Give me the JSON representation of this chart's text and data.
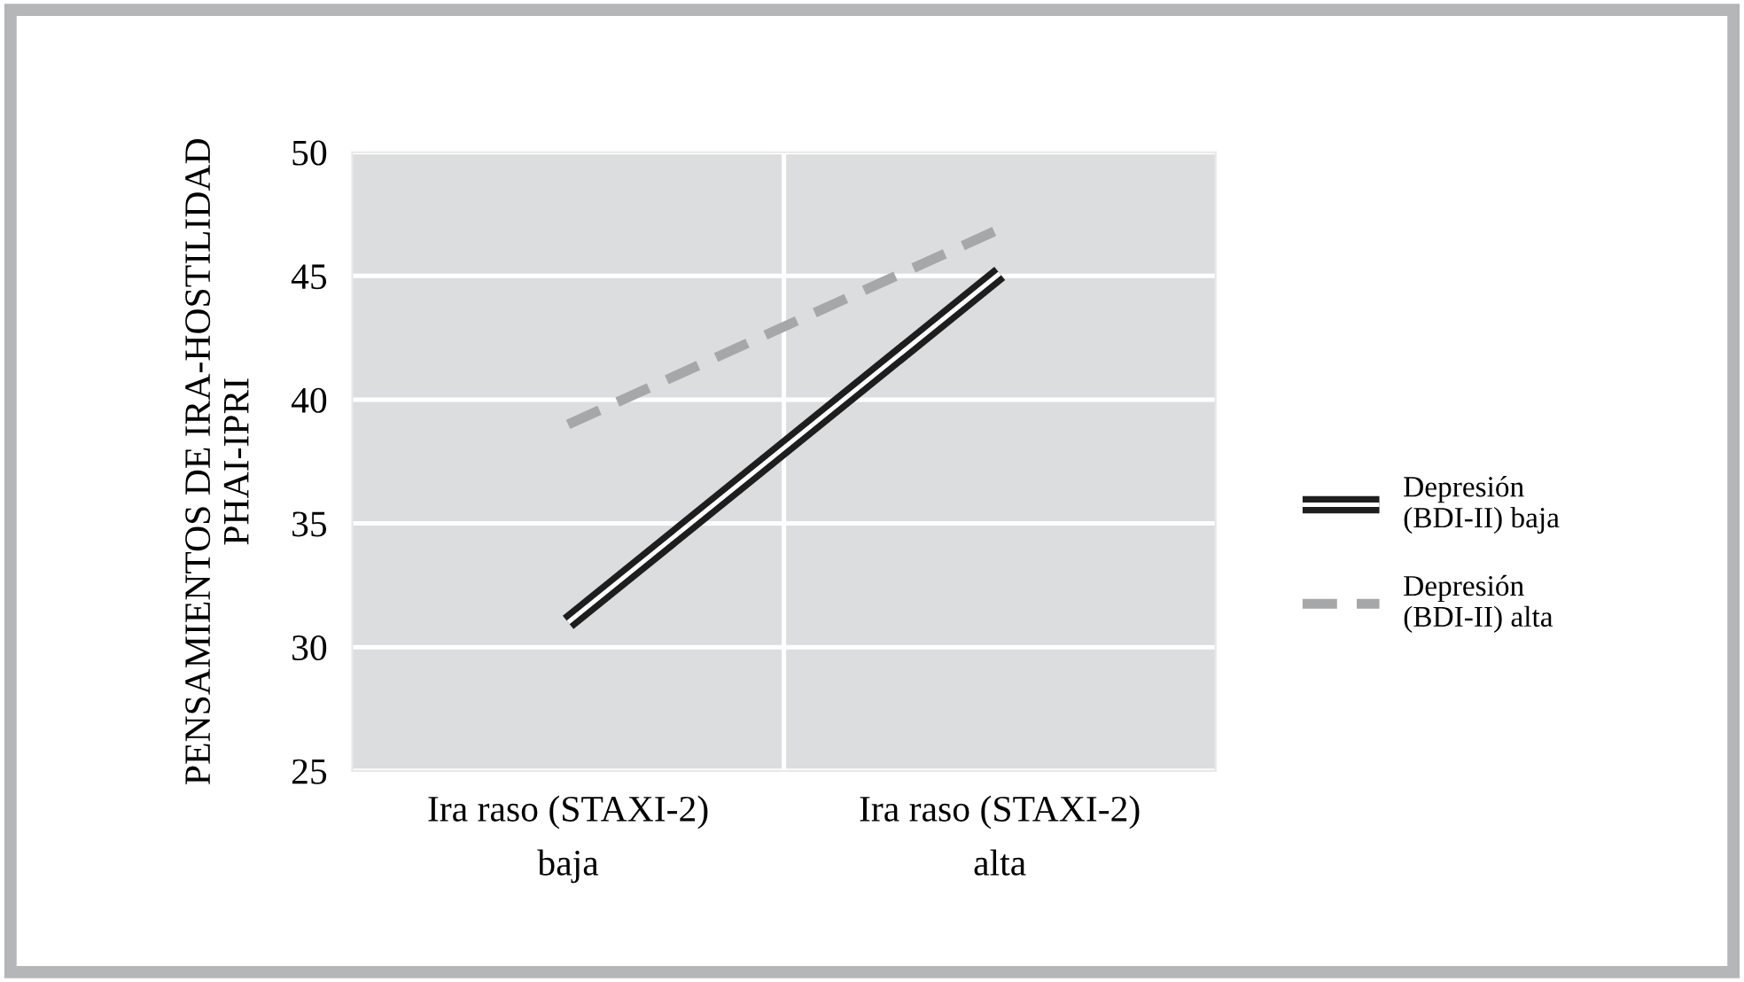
{
  "chart_data": {
    "type": "line",
    "ylabel": "PENSAMIENTOS DE IRA-HOSTILIDAD\nPHAI-IPRI",
    "categories": [
      "Ira raso (STAXI-2)\nbaja",
      "Ira raso (STAXI-2)\nalta"
    ],
    "series": [
      {
        "name": "Depresión\n(BDI-II) baja",
        "color": "#1e1e1e",
        "values": [
          31,
          45.1
        ],
        "line_style": "solid"
      },
      {
        "name": "Depresión\n(BDI-II) alta",
        "color": "#a6a7a9",
        "values": [
          39,
          46.9
        ],
        "line_style": "dashed"
      }
    ],
    "ylim": [
      25,
      50
    ],
    "yticks": [
      25,
      30,
      35,
      40,
      45,
      50
    ],
    "grid": true,
    "legend": "right",
    "marker": "none"
  }
}
